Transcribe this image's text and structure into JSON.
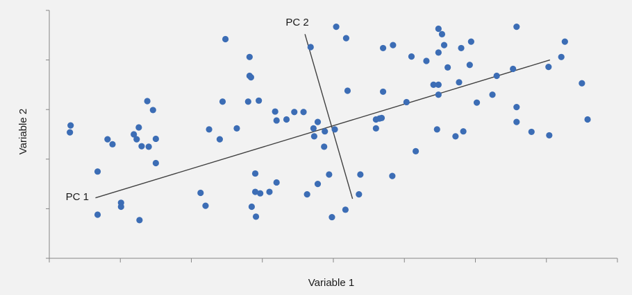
{
  "chart_data": {
    "type": "scatter",
    "xlabel": "Variable 1",
    "ylabel": "Variable 2",
    "xlim": [
      0,
      8
    ],
    "ylim": [
      0,
      5
    ],
    "x_ticks": [
      0,
      1,
      2,
      3,
      4,
      5,
      6,
      7,
      8
    ],
    "y_ticks": [
      0,
      1,
      2,
      3,
      4,
      5
    ],
    "grid": false,
    "point_color": "#3c6db5",
    "annotations": [
      {
        "label": "PC 1",
        "from": [
          0.65,
          1.22
        ],
        "to": [
          7.05,
          4.0
        ]
      },
      {
        "label": "PC 2",
        "from": [
          3.6,
          4.52
        ],
        "to": [
          4.27,
          1.2
        ]
      }
    ],
    "points": [
      [
        0.3,
        2.68
      ],
      [
        0.29,
        2.54
      ],
      [
        0.68,
        1.75
      ],
      [
        0.68,
        0.88
      ],
      [
        0.82,
        2.4
      ],
      [
        0.89,
        2.3
      ],
      [
        1.01,
        1.12
      ],
      [
        1.01,
        1.04
      ],
      [
        1.19,
        2.5
      ],
      [
        1.23,
        2.4
      ],
      [
        1.26,
        2.64
      ],
      [
        1.27,
        0.77
      ],
      [
        1.3,
        2.26
      ],
      [
        1.38,
        3.17
      ],
      [
        1.4,
        2.25
      ],
      [
        1.46,
        2.99
      ],
      [
        1.5,
        2.41
      ],
      [
        1.5,
        1.92
      ],
      [
        2.13,
        1.32
      ],
      [
        2.2,
        1.06
      ],
      [
        2.25,
        2.6
      ],
      [
        2.4,
        2.4
      ],
      [
        2.44,
        3.16
      ],
      [
        2.48,
        4.42
      ],
      [
        2.64,
        2.62
      ],
      [
        2.8,
        3.16
      ],
      [
        2.82,
        4.06
      ],
      [
        2.82,
        3.68
      ],
      [
        2.84,
        3.65
      ],
      [
        2.85,
        1.04
      ],
      [
        2.9,
        1.71
      ],
      [
        2.9,
        1.34
      ],
      [
        2.91,
        0.84
      ],
      [
        2.95,
        3.18
      ],
      [
        2.97,
        1.31
      ],
      [
        3.1,
        1.34
      ],
      [
        3.18,
        2.96
      ],
      [
        3.2,
        2.78
      ],
      [
        3.2,
        1.53
      ],
      [
        3.34,
        2.8
      ],
      [
        3.45,
        2.95
      ],
      [
        3.58,
        2.95
      ],
      [
        3.63,
        1.29
      ],
      [
        3.68,
        4.26
      ],
      [
        3.72,
        2.62
      ],
      [
        3.73,
        2.46
      ],
      [
        3.78,
        2.75
      ],
      [
        3.78,
        1.5
      ],
      [
        3.87,
        2.25
      ],
      [
        3.88,
        2.56
      ],
      [
        3.94,
        1.69
      ],
      [
        3.98,
        0.83
      ],
      [
        4.02,
        2.6
      ],
      [
        4.04,
        4.67
      ],
      [
        4.18,
        4.44
      ],
      [
        4.2,
        3.38
      ],
      [
        4.17,
        0.98
      ],
      [
        4.36,
        1.29
      ],
      [
        4.38,
        1.69
      ],
      [
        4.6,
        2.8
      ],
      [
        4.6,
        2.62
      ],
      [
        4.65,
        2.82
      ],
      [
        4.68,
        2.83
      ],
      [
        4.7,
        3.36
      ],
      [
        4.83,
        1.66
      ],
      [
        4.84,
        4.3
      ],
      [
        4.7,
        4.24
      ],
      [
        5.03,
        3.15
      ],
      [
        5.1,
        4.07
      ],
      [
        5.16,
        2.16
      ],
      [
        5.31,
        3.98
      ],
      [
        5.41,
        3.5
      ],
      [
        5.46,
        2.6
      ],
      [
        5.48,
        3.5
      ],
      [
        5.48,
        4.15
      ],
      [
        5.48,
        3.3
      ],
      [
        5.48,
        4.63
      ],
      [
        5.53,
        4.52
      ],
      [
        5.56,
        4.3
      ],
      [
        5.61,
        3.85
      ],
      [
        5.72,
        2.46
      ],
      [
        5.77,
        3.55
      ],
      [
        5.8,
        4.24
      ],
      [
        5.83,
        2.56
      ],
      [
        5.92,
        3.9
      ],
      [
        5.94,
        4.37
      ],
      [
        6.02,
        3.14
      ],
      [
        6.24,
        3.3
      ],
      [
        6.3,
        3.68
      ],
      [
        6.53,
        3.82
      ],
      [
        6.58,
        3.05
      ],
      [
        6.58,
        2.75
      ],
      [
        6.79,
        2.55
      ],
      [
        7.04,
        2.48
      ],
      [
        7.03,
        3.86
      ],
      [
        7.21,
        4.06
      ],
      [
        7.26,
        4.37
      ],
      [
        7.5,
        3.53
      ],
      [
        7.58,
        2.8
      ],
      [
        6.58,
        4.67
      ]
    ]
  }
}
